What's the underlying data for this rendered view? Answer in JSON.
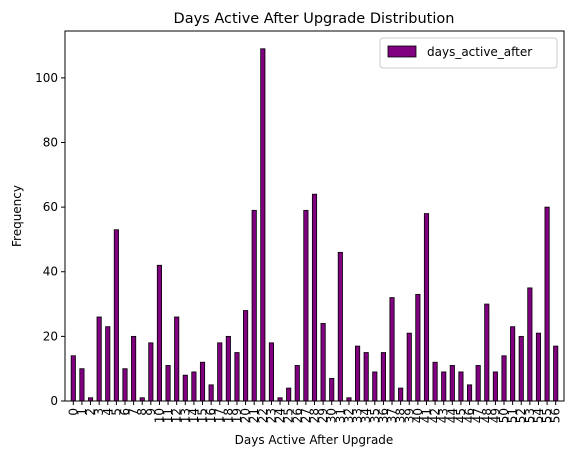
{
  "chart_data": {
    "type": "bar",
    "title": "Days Active After Upgrade Distribution",
    "xlabel": "Days Active After Upgrade",
    "ylabel": "Frequency",
    "categories": [
      "0",
      "1",
      "2",
      "3",
      "4",
      "5",
      "6",
      "7",
      "8",
      "9",
      "10",
      "11",
      "12",
      "13",
      "14",
      "15",
      "16",
      "17",
      "18",
      "19",
      "20",
      "21",
      "22",
      "23",
      "24",
      "25",
      "26",
      "27",
      "28",
      "29",
      "30",
      "31",
      "32",
      "33",
      "34",
      "35",
      "36",
      "37",
      "38",
      "39",
      "40",
      "41",
      "42",
      "43",
      "44",
      "45",
      "46",
      "47",
      "48",
      "49",
      "50",
      "51",
      "52",
      "53",
      "54",
      "55",
      "56"
    ],
    "series": [
      {
        "name": "days_active_after",
        "color": "#800080",
        "values": [
          14,
          10,
          1,
          26,
          23,
          53,
          10,
          20,
          1,
          18,
          42,
          11,
          26,
          8,
          9,
          12,
          5,
          18,
          20,
          15,
          28,
          59,
          109,
          18,
          1,
          4,
          11,
          59,
          64,
          24,
          7,
          46,
          1,
          17,
          15,
          9,
          15,
          32,
          4,
          21,
          33,
          58,
          12,
          9,
          11,
          9,
          5,
          11,
          30,
          9,
          14,
          23,
          20,
          35,
          21,
          60,
          17
        ]
      }
    ],
    "ylim": [
      0,
      114.5
    ],
    "yticks": [
      0,
      20,
      40,
      60,
      80,
      100
    ],
    "legend": "top-right",
    "grid": false
  }
}
